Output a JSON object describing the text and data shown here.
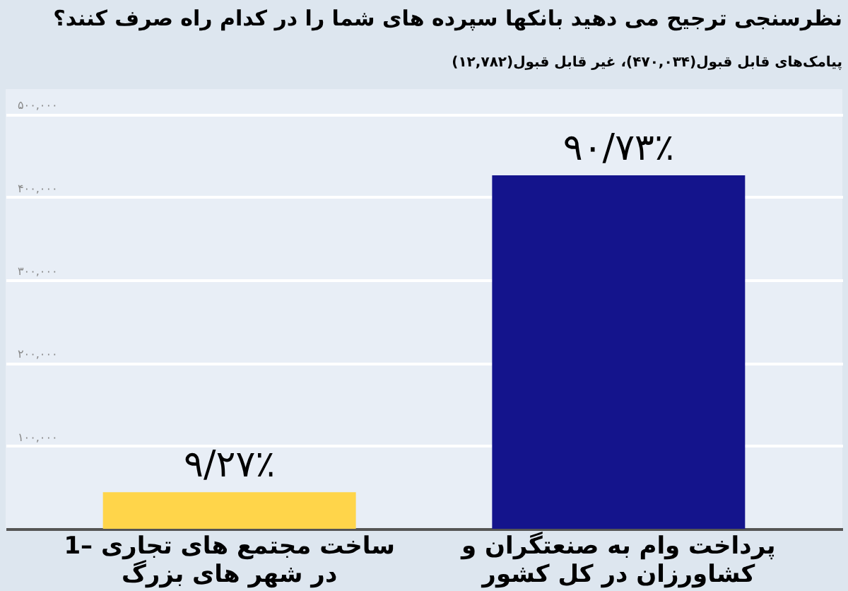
{
  "chart_data": {
    "type": "bar",
    "title": "نظرسنجی ترجیح می دهید بانکها سپرده های شما را در کدام راه صرف کنند؟",
    "subtitle": "پیامک‌های قابل قبول(۴۷۰,۰۳۴)، غیر قابل قبول(۱۲,۷۸۲)",
    "categories": [
      "1– ساخت مجتمع های تجاری در شهر های بزرگ",
      "پرداخت وام به صنعتگران و کشاورزان در کل کشور"
    ],
    "values": [
      44000,
      426000
    ],
    "colors": [
      "#ffd54a",
      "#14148c"
    ],
    "value_labels": [
      "۹/۲۷٪",
      "۹۰/۷۳٪"
    ],
    "ylim": [
      0,
      530000
    ],
    "yticks": [
      {
        "value": 100000,
        "label": "۱۰۰,۰۰۰"
      },
      {
        "value": 200000,
        "label": "۲۰۰,۰۰۰"
      },
      {
        "value": 300000,
        "label": "۳۰۰,۰۰۰"
      },
      {
        "value": 400000,
        "label": "۴۰۰,۰۰۰"
      },
      {
        "value": 500000,
        "label": "۵۰۰,۰۰۰"
      }
    ],
    "grid": "y"
  }
}
